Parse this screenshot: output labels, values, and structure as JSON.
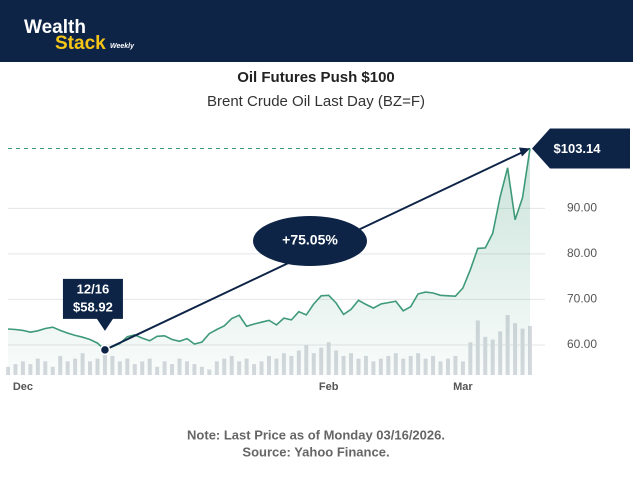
{
  "header": {
    "brand_top": "Wealth",
    "brand_bottom": "Stack",
    "brand_tag": "Weekly"
  },
  "chart_data": {
    "type": "line",
    "title": "Oil Futures Push $100",
    "subtitle": "Brent Crude Oil Last Day (BZ=F)",
    "categories": [
      null,
      null,
      "Dec",
      null,
      null,
      null,
      null,
      null,
      null,
      null,
      null,
      null,
      null,
      null,
      null,
      null,
      null,
      null,
      null,
      null,
      null,
      null,
      null,
      null,
      null,
      null,
      null,
      null,
      null,
      null,
      null,
      null,
      null,
      null,
      null,
      null,
      null,
      null,
      null,
      null,
      null,
      null,
      null,
      "Feb",
      null,
      null,
      null,
      null,
      null,
      null,
      null,
      null,
      null,
      null,
      null,
      null,
      null,
      null,
      null,
      null,
      null,
      "Mar",
      null,
      null,
      null,
      null,
      null,
      null,
      null,
      null,
      null
    ],
    "series": [
      {
        "name": "BZ=F",
        "color": "#3e9a78",
        "values": [
          63.5,
          63.4,
          63.2,
          62.8,
          63.1,
          63.6,
          63.9,
          63.2,
          62.6,
          62.1,
          61.7,
          61.2,
          60.4,
          58.92,
          59.6,
          60.3,
          61.8,
          62.2,
          61.5,
          60.9,
          61.9,
          62.0,
          61.2,
          60.8,
          61.4,
          60.2,
          60.6,
          62.5,
          63.4,
          64.2,
          65.8,
          66.5,
          64.1,
          64.6,
          65.0,
          65.4,
          64.4,
          65.9,
          65.5,
          67.3,
          66.6,
          69.0,
          70.8,
          70.9,
          69.2,
          66.7,
          67.8,
          69.8,
          68.9,
          68.1,
          69.0,
          69.3,
          69.6,
          67.5,
          68.4,
          71.2,
          71.6,
          71.4,
          70.9,
          70.8,
          70.7,
          72.5,
          76.5,
          81.2,
          81.3,
          84.5,
          92.6,
          98.9,
          87.5,
          92.3,
          103.14
        ]
      }
    ],
    "volume": [
      3,
      4,
      5,
      4,
      6,
      5,
      3,
      7,
      5,
      6,
      8,
      5,
      6,
      9,
      7,
      5,
      6,
      4,
      5,
      6,
      3,
      5,
      4,
      6,
      5,
      4,
      3,
      2,
      5,
      6,
      7,
      5,
      6,
      4,
      5,
      7,
      6,
      8,
      7,
      9,
      11,
      8,
      10,
      12,
      9,
      7,
      8,
      6,
      7,
      5,
      6,
      7,
      8,
      6,
      7,
      8,
      6,
      7,
      5,
      6,
      7,
      5,
      12,
      20,
      14,
      13,
      16,
      22,
      19,
      17,
      18
    ],
    "ylim": [
      53.4,
      105
    ],
    "yticks": [
      {
        "value": 60,
        "label": "60.00"
      },
      {
        "value": 70,
        "label": "70.00"
      },
      {
        "value": 80,
        "label": "80.00"
      },
      {
        "value": 90,
        "label": "90.00"
      }
    ],
    "grid": true,
    "annotations": {
      "low_date": "12/16",
      "low_label": "$58.92",
      "change": "+75.05%",
      "last_label": "$103.14"
    },
    "note": [
      "Note: Last Price as of Monday 03/16/2026.",
      "Source: Yahoo Finance."
    ]
  }
}
